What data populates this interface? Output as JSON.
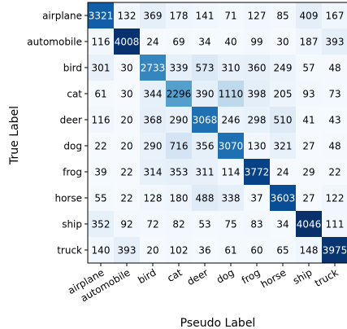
{
  "chart_data": {
    "type": "heatmap",
    "title": "",
    "xlabel": "Pseudo Label",
    "ylabel": "True Label",
    "x_categories": [
      "airplane",
      "automobile",
      "bird",
      "cat",
      "deer",
      "dog",
      "frog",
      "horse",
      "ship",
      "truck"
    ],
    "y_categories": [
      "airplane",
      "automobile",
      "bird",
      "cat",
      "deer",
      "dog",
      "frog",
      "horse",
      "ship",
      "truck"
    ],
    "values": [
      [
        3321,
        132,
        369,
        178,
        141,
        71,
        127,
        85,
        409,
        167
      ],
      [
        116,
        4008,
        24,
        69,
        34,
        40,
        99,
        30,
        187,
        393
      ],
      [
        301,
        30,
        2733,
        339,
        573,
        310,
        360,
        249,
        57,
        48
      ],
      [
        61,
        30,
        344,
        2296,
        390,
        1110,
        398,
        205,
        93,
        73
      ],
      [
        116,
        20,
        368,
        290,
        3068,
        246,
        298,
        510,
        41,
        43
      ],
      [
        22,
        20,
        290,
        716,
        356,
        3070,
        130,
        321,
        27,
        48
      ],
      [
        39,
        22,
        314,
        353,
        311,
        114,
        3772,
        24,
        29,
        22
      ],
      [
        55,
        22,
        128,
        180,
        488,
        338,
        37,
        3603,
        27,
        122
      ],
      [
        352,
        92,
        72,
        82,
        53,
        75,
        83,
        34,
        4046,
        111
      ],
      [
        140,
        393,
        20,
        102,
        36,
        61,
        60,
        65,
        148,
        3975
      ]
    ],
    "colormap": "Blues",
    "color_range": [
      0,
      4046
    ],
    "grid": false,
    "legend": "none"
  }
}
